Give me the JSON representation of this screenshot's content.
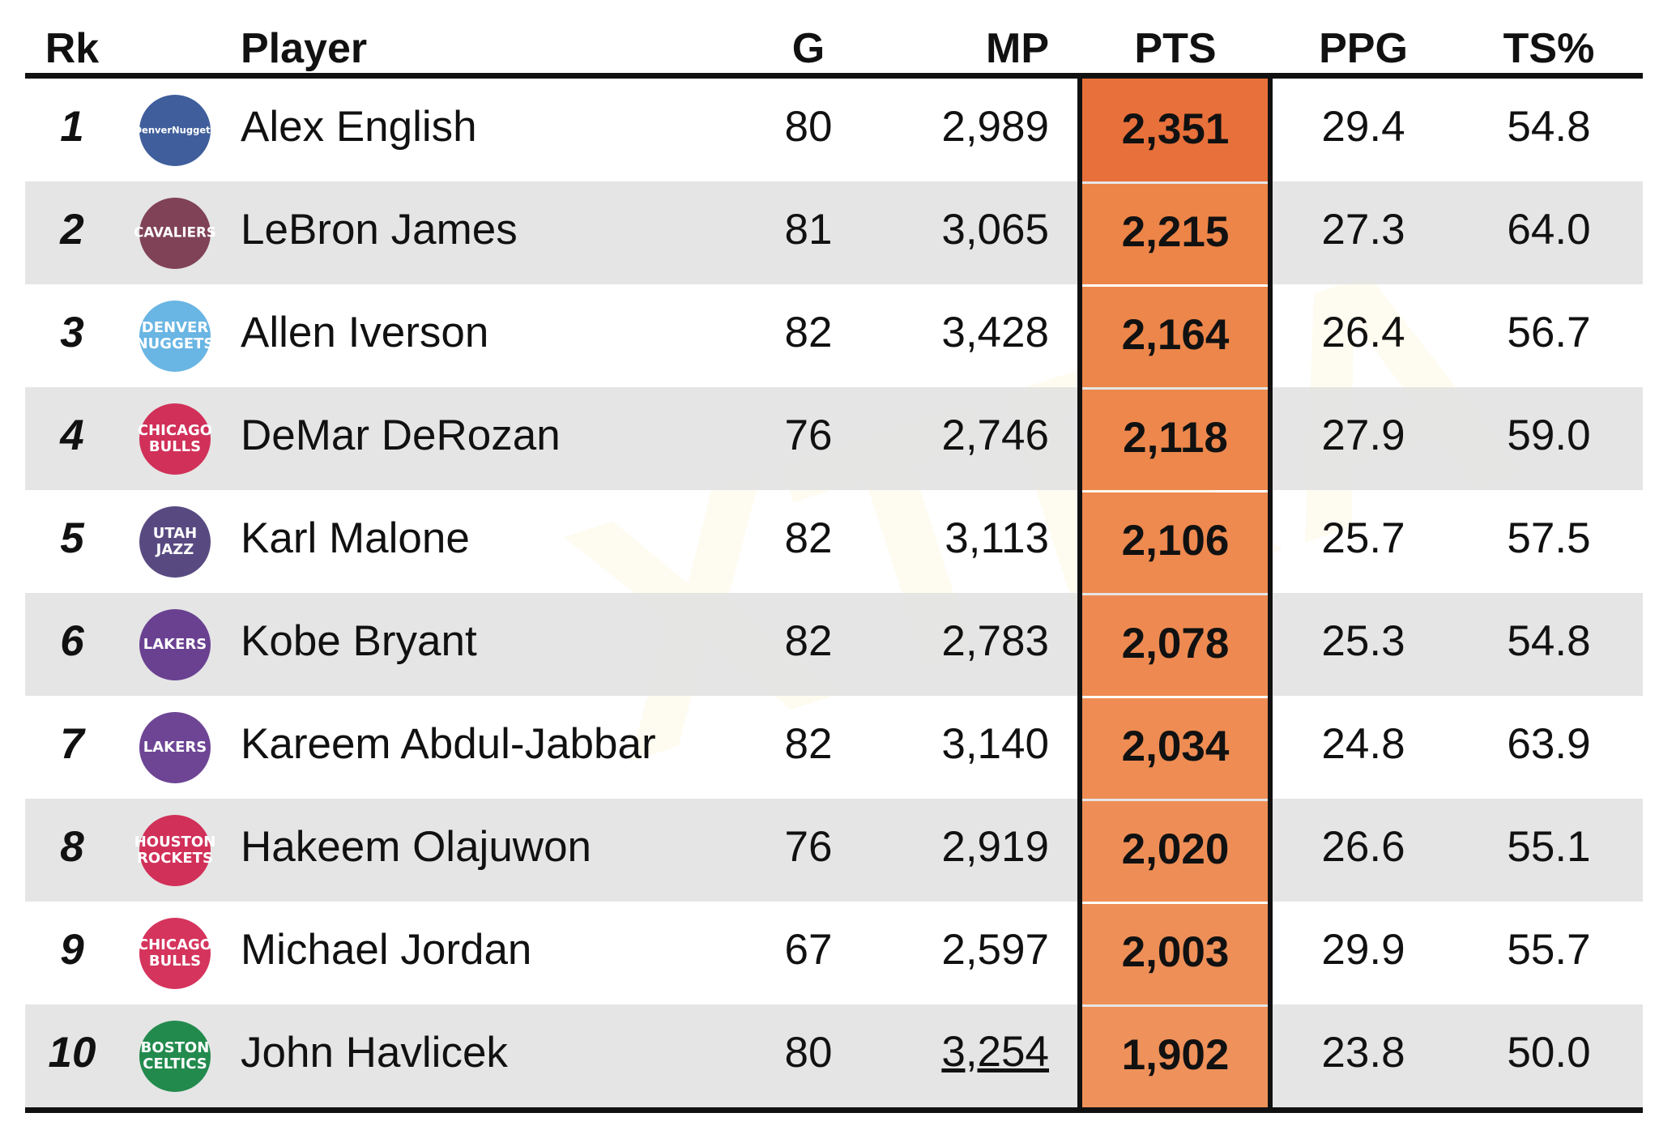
{
  "watermark": "XTRA",
  "table": {
    "header": [
      "Rk",
      "Player",
      "G",
      "MP",
      "PTS",
      "PPG",
      "TS%"
    ],
    "rows": [
      [
        "1",
        "Alex English",
        "80",
        "2,989",
        "2,351",
        "29.4",
        "54.8"
      ],
      [
        "2",
        "LeBron James",
        "81",
        "3,065",
        "2,215",
        "27.3",
        "64.0"
      ],
      [
        "3",
        "Allen Iverson",
        "82",
        "3,428",
        "2,164",
        "26.4",
        "56.7"
      ],
      [
        "4",
        "DeMar DeRozan",
        "76",
        "2,746",
        "2,118",
        "27.9",
        "59.0"
      ],
      [
        "5",
        "Karl Malone",
        "82",
        "3,113",
        "2,106",
        "25.7",
        "57.5"
      ],
      [
        "6",
        "Kobe Bryant",
        "82",
        "2,783",
        "2,078",
        "25.3",
        "54.8"
      ],
      [
        "7",
        "Kareem Abdul-Jabbar",
        "82",
        "3,140",
        "2,034",
        "24.8",
        "63.9"
      ],
      [
        "8",
        "Hakeem Olajuwon",
        "76",
        "2,919",
        "2,020",
        "26.6",
        "55.1"
      ],
      [
        "9",
        "Michael Jordan",
        "67",
        "2,597",
        "2,003",
        "29.9",
        "55.7"
      ],
      [
        "10",
        "John Havlicek",
        "80",
        "3,254",
        "1,902",
        "23.8",
        "50.0"
      ]
    ],
    "logos": [
      {
        "lines": [
          "DenverNuggets"
        ],
        "color": "#1d428a"
      },
      {
        "lines": [
          "CAVALIERS"
        ],
        "color": "#6f263d"
      },
      {
        "lines": [
          "DENVER",
          "NUGGETS"
        ],
        "color": "#4fa8de"
      },
      {
        "lines": [
          "CHICAGO",
          "BULLS"
        ],
        "color": "#ce1141"
      },
      {
        "lines": [
          "UTAH",
          "JAZZ"
        ],
        "color": "#3b2a6b"
      },
      {
        "lines": [
          "LAKERS"
        ],
        "color": "#552583"
      },
      {
        "lines": [
          "LAKERS"
        ],
        "color": "#552583"
      },
      {
        "lines": [
          "HOUSTON",
          "ROCKETS"
        ],
        "color": "#ce1141"
      },
      {
        "lines": [
          "CHICAGO",
          "BULLS"
        ],
        "color": "#ce1141"
      },
      {
        "lines": [
          "BOSTON",
          "CELTICS"
        ],
        "color": "#007a33"
      }
    ]
  }
}
